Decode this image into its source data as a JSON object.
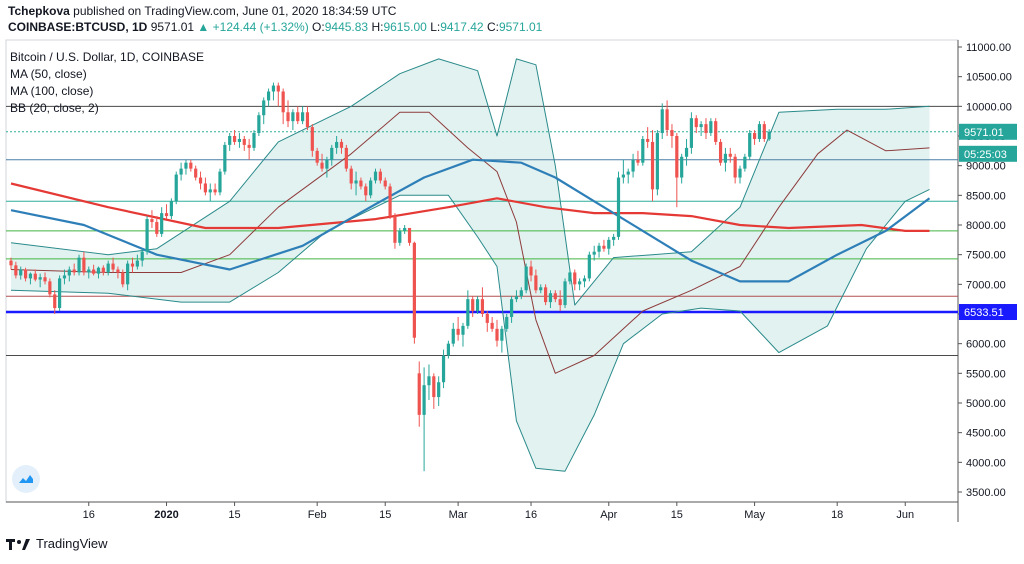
{
  "header": {
    "author": "Tchepkova",
    "published_text": " published on TradingView.com, June 01, 2020 18:34:59 UTC"
  },
  "quote": {
    "symbol": "COINBASE:BTCUSD, 1D",
    "last": "9571.01",
    "change": "▲ +124.44 (+1.32%)",
    "o_label": "O:",
    "o": "9445.83",
    "h_label": "H:",
    "h": "9615.00",
    "l_label": "L:",
    "l": "9417.42",
    "c_label": "C:",
    "c": "9571.01"
  },
  "legend": {
    "title": "Bitcoin / U.S. Dollar, 1D, COINBASE",
    "ma50": "MA (50, close)",
    "ma100": "MA (100, close)",
    "bb": "BB (20, close, 2)"
  },
  "footer": {
    "brand": "TradingView",
    "mark": "17"
  },
  "colors": {
    "up": "#26a69a",
    "down": "#ef5350",
    "ma50": "#e53935",
    "ma100": "#2e7fb8",
    "bb_band": "#2a8a8a",
    "bb_basis": "#8d3b3b",
    "bb_fill": "#e2f2f1",
    "blue_line": "#1a1aff",
    "red_line": "#b05050",
    "gray_line": "#4a4a4a",
    "green_line": "#43b543",
    "teal_line": "#2fae9a",
    "steel_line": "#4a7fa5",
    "last_price_bg": "#26a69a",
    "support_bg": "#1a1aff"
  },
  "chart_data": {
    "type": "candlestick",
    "title": "Bitcoin / U.S. Dollar, 1D, COINBASE",
    "ylim": [
      3400,
      11200
    ],
    "y_ticks": [
      3500,
      4000,
      4500,
      5000,
      5500,
      6000,
      6500,
      7000,
      7500,
      8000,
      8500,
      9000,
      9500,
      10000,
      10500,
      11000
    ],
    "y_tick_labels": [
      "3500.00",
      "4000.00",
      "4500.00",
      "5000.00",
      "5500.00",
      "6000.00",
      "6500.00",
      "7000.00",
      "7500.00",
      "8000.00",
      "8500.00",
      "9000.00",
      "9500.00",
      "10000.00",
      "10500.00",
      "11000.00"
    ],
    "x_ticks": [
      {
        "day": 16,
        "label": "16"
      },
      {
        "day": 32,
        "label": "2020"
      },
      {
        "day": 46,
        "label": "15"
      },
      {
        "day": 63,
        "label": "Feb"
      },
      {
        "day": 77,
        "label": "15"
      },
      {
        "day": 92,
        "label": "Mar"
      },
      {
        "day": 107,
        "label": "16"
      },
      {
        "day": 123,
        "label": "Apr"
      },
      {
        "day": 137,
        "label": "15"
      },
      {
        "day": 153,
        "label": "May"
      },
      {
        "day": 170,
        "label": "18"
      },
      {
        "day": 184,
        "label": "Jun"
      }
    ],
    "candles": [
      [
        7400,
        7450,
        7250,
        7320
      ],
      [
        7320,
        7380,
        7100,
        7150
      ],
      [
        7150,
        7300,
        7080,
        7250
      ],
      [
        7250,
        7280,
        7050,
        7100
      ],
      [
        7100,
        7200,
        7000,
        7180
      ],
      [
        7180,
        7250,
        7050,
        7080
      ],
      [
        7080,
        7180,
        6950,
        7120
      ],
      [
        7120,
        7200,
        7000,
        7050
      ],
      [
        7050,
        7100,
        6780,
        6830
      ],
      [
        6830,
        6900,
        6500,
        6600
      ],
      [
        6600,
        7150,
        6550,
        7100
      ],
      [
        7100,
        7250,
        7000,
        7150
      ],
      [
        7150,
        7300,
        7050,
        7250
      ],
      [
        7250,
        7350,
        7150,
        7200
      ],
      [
        7200,
        7500,
        7150,
        7450
      ],
      [
        7450,
        7550,
        7150,
        7200
      ],
      [
        7200,
        7300,
        7100,
        7250
      ],
      [
        7250,
        7330,
        7150,
        7180
      ],
      [
        7180,
        7300,
        7100,
        7280
      ],
      [
        7280,
        7320,
        7150,
        7200
      ],
      [
        7200,
        7400,
        7150,
        7350
      ],
      [
        7350,
        7450,
        7200,
        7250
      ],
      [
        7250,
        7300,
        7100,
        7200
      ],
      [
        7200,
        7250,
        6950,
        7000
      ],
      [
        7000,
        7400,
        6900,
        7350
      ],
      [
        7350,
        7450,
        7200,
        7300
      ],
      [
        7300,
        7500,
        7250,
        7400
      ],
      [
        7400,
        7600,
        7300,
        7550
      ],
      [
        7550,
        8150,
        7500,
        8100
      ],
      [
        8100,
        8250,
        7950,
        8050
      ],
      [
        8050,
        8150,
        7800,
        7850
      ],
      [
        7850,
        8300,
        7800,
        8200
      ],
      [
        8200,
        8350,
        8100,
        8150
      ],
      [
        8150,
        8450,
        8100,
        8400
      ],
      [
        8400,
        8900,
        8350,
        8850
      ],
      [
        8850,
        9050,
        8750,
        8950
      ],
      [
        8950,
        9100,
        8850,
        9050
      ],
      [
        9050,
        9100,
        8900,
        8950
      ],
      [
        8950,
        9000,
        8750,
        8800
      ],
      [
        8800,
        8900,
        8600,
        8700
      ],
      [
        8700,
        8800,
        8500,
        8550
      ],
      [
        8550,
        8700,
        8400,
        8600
      ],
      [
        8600,
        8700,
        8500,
        8550
      ],
      [
        8550,
        8950,
        8500,
        8900
      ],
      [
        8900,
        9400,
        8850,
        9350
      ],
      [
        9350,
        9550,
        9250,
        9500
      ],
      [
        9500,
        9600,
        9350,
        9400
      ],
      [
        9400,
        9550,
        9300,
        9450
      ],
      [
        9450,
        9500,
        9250,
        9350
      ],
      [
        9350,
        9450,
        9100,
        9300
      ],
      [
        9300,
        9600,
        9250,
        9550
      ],
      [
        9550,
        9900,
        9500,
        9850
      ],
      [
        9850,
        10150,
        9700,
        10100
      ],
      [
        10100,
        10300,
        10000,
        10250
      ],
      [
        10250,
        10400,
        10100,
        10350
      ],
      [
        10350,
        10400,
        10000,
        10250
      ],
      [
        10250,
        10300,
        9700,
        9900
      ],
      [
        9900,
        10100,
        9650,
        9750
      ],
      [
        9750,
        9950,
        9600,
        9900
      ],
      [
        9900,
        10000,
        9700,
        9750
      ],
      [
        9750,
        10000,
        9700,
        9900
      ],
      [
        9900,
        10000,
        9600,
        9650
      ],
      [
        9650,
        9700,
        9150,
        9250
      ],
      [
        9250,
        9300,
        9000,
        9050
      ],
      [
        9050,
        9200,
        8900,
        8950
      ],
      [
        8950,
        9150,
        8800,
        9100
      ],
      [
        9100,
        9350,
        9000,
        9300
      ],
      [
        9300,
        9500,
        9200,
        9400
      ],
      [
        9400,
        9450,
        9200,
        9300
      ],
      [
        9300,
        9350,
        8900,
        8950
      ],
      [
        8950,
        9000,
        8600,
        8700
      ],
      [
        8700,
        8900,
        8500,
        8750
      ],
      [
        8750,
        8800,
        8600,
        8650
      ],
      [
        8650,
        8700,
        8400,
        8500
      ],
      [
        8500,
        8800,
        8450,
        8750
      ],
      [
        8750,
        8950,
        8700,
        8900
      ],
      [
        8900,
        8950,
        8700,
        8750
      ],
      [
        8750,
        8800,
        8600,
        8650
      ],
      [
        8650,
        8700,
        8100,
        8150
      ],
      [
        8150,
        8200,
        7600,
        7700
      ],
      [
        7700,
        7950,
        7650,
        7900
      ],
      [
        7900,
        8000,
        7850,
        7950
      ],
      [
        7950,
        7950,
        7650,
        7700
      ],
      [
        7700,
        7720,
        6000,
        6100
      ],
      [
        5500,
        5700,
        4600,
        4800
      ],
      [
        4800,
        5600,
        3850,
        5300
      ],
      [
        5300,
        5650,
        5050,
        5450
      ],
      [
        5450,
        5500,
        4900,
        5100
      ],
      [
        5100,
        5450,
        4950,
        5350
      ],
      [
        5350,
        5900,
        5250,
        5800
      ],
      [
        5800,
        6050,
        5750,
        6000
      ],
      [
        6000,
        6350,
        5950,
        6250
      ],
      [
        6250,
        6450,
        6050,
        6150
      ],
      [
        6150,
        6350,
        5950,
        6300
      ],
      [
        6300,
        6900,
        6250,
        6750
      ],
      [
        6750,
        6800,
        6450,
        6550
      ],
      [
        6550,
        6800,
        6500,
        6750
      ],
      [
        6750,
        6950,
        6450,
        6500
      ],
      [
        6500,
        6550,
        6200,
        6350
      ],
      [
        6350,
        6450,
        6200,
        6250
      ],
      [
        6250,
        6400,
        5950,
        6050
      ],
      [
        6050,
        6300,
        5850,
        6250
      ],
      [
        6250,
        6500,
        6200,
        6450
      ],
      [
        6450,
        6800,
        6350,
        6750
      ],
      [
        6750,
        6900,
        6700,
        6800
      ],
      [
        6800,
        6950,
        6750,
        6900
      ],
      [
        6900,
        7350,
        6850,
        7300
      ],
      [
        7300,
        7400,
        7050,
        7150
      ],
      [
        7150,
        7250,
        6850,
        6900
      ],
      [
        6900,
        7000,
        6850,
        6950
      ],
      [
        6950,
        7000,
        6650,
        6700
      ],
      [
        6700,
        6900,
        6600,
        6850
      ],
      [
        6850,
        6900,
        6700,
        6750
      ],
      [
        6750,
        6900,
        6550,
        6650
      ],
      [
        6650,
        7100,
        6600,
        7050
      ],
      [
        7050,
        7250,
        7000,
        7200
      ],
      [
        7200,
        7250,
        6900,
        7000
      ],
      [
        7000,
        7100,
        6900,
        7050
      ],
      [
        7050,
        7150,
        6950,
        7100
      ],
      [
        7100,
        7550,
        7050,
        7500
      ],
      [
        7500,
        7650,
        7400,
        7550
      ],
      [
        7550,
        7700,
        7450,
        7650
      ],
      [
        7650,
        7750,
        7550,
        7600
      ],
      [
        7600,
        7800,
        7500,
        7750
      ],
      [
        7750,
        7850,
        7650,
        7800
      ],
      [
        7800,
        8900,
        7750,
        8800
      ],
      [
        8800,
        9100,
        8700,
        8850
      ],
      [
        8850,
        8950,
        8700,
        8900
      ],
      [
        8900,
        9200,
        8800,
        9100
      ],
      [
        9100,
        9250,
        9000,
        9050
      ],
      [
        9050,
        9500,
        9000,
        9450
      ],
      [
        9450,
        9650,
        9300,
        9400
      ],
      [
        9400,
        9600,
        8400,
        8600
      ],
      [
        8600,
        9600,
        8500,
        9550
      ],
      [
        9550,
        10050,
        9450,
        9950
      ],
      [
        9950,
        10100,
        9500,
        9600
      ],
      [
        9600,
        9700,
        9300,
        9500
      ],
      [
        9500,
        9550,
        8300,
        8800
      ],
      [
        8800,
        9200,
        8700,
        9150
      ],
      [
        9150,
        9450,
        9000,
        9300
      ],
      [
        9300,
        9900,
        9200,
        9800
      ],
      [
        9800,
        9850,
        9550,
        9650
      ],
      [
        9650,
        9750,
        9500,
        9700
      ],
      [
        9700,
        9800,
        9450,
        9550
      ],
      [
        9550,
        9800,
        9500,
        9750
      ],
      [
        9750,
        9800,
        9350,
        9400
      ],
      [
        9400,
        9450,
        9000,
        9050
      ],
      [
        9050,
        9300,
        8900,
        9200
      ],
      [
        9200,
        9300,
        9050,
        9150
      ],
      [
        9150,
        9200,
        8700,
        8800
      ],
      [
        8800,
        9000,
        8700,
        8950
      ],
      [
        8950,
        9200,
        8900,
        9150
      ],
      [
        9150,
        9600,
        9100,
        9550
      ],
      [
        9550,
        9600,
        9350,
        9450
      ],
      [
        9450,
        9750,
        9400,
        9700
      ],
      [
        9700,
        9750,
        9400,
        9450
      ],
      [
        9445.83,
        9615,
        9417.42,
        9571.01
      ]
    ],
    "ma50": [
      [
        0,
        8700
      ],
      [
        20,
        8300
      ],
      [
        40,
        7950
      ],
      [
        55,
        7950
      ],
      [
        75,
        8100
      ],
      [
        90,
        8300
      ],
      [
        100,
        8450
      ],
      [
        110,
        8300
      ],
      [
        120,
        8200
      ],
      [
        130,
        8200
      ],
      [
        140,
        8150
      ],
      [
        150,
        8000
      ],
      [
        160,
        7950
      ],
      [
        175,
        8000
      ],
      [
        184,
        7900
      ],
      [
        189,
        7900
      ]
    ],
    "ma100": [
      [
        0,
        8250
      ],
      [
        15,
        8000
      ],
      [
        30,
        7500
      ],
      [
        45,
        7250
      ],
      [
        60,
        7650
      ],
      [
        75,
        8350
      ],
      [
        85,
        8800
      ],
      [
        95,
        9100
      ],
      [
        105,
        9050
      ],
      [
        112,
        8800
      ],
      [
        120,
        8400
      ],
      [
        130,
        7900
      ],
      [
        140,
        7400
      ],
      [
        150,
        7050
      ],
      [
        160,
        7050
      ],
      [
        170,
        7500
      ],
      [
        180,
        7900
      ],
      [
        189,
        8450
      ]
    ],
    "bb_upper": [
      [
        0,
        7700
      ],
      [
        20,
        7500
      ],
      [
        30,
        7600
      ],
      [
        45,
        8400
      ],
      [
        55,
        9400
      ],
      [
        70,
        10000
      ],
      [
        80,
        10550
      ],
      [
        88,
        10800
      ],
      [
        96,
        10600
      ],
      [
        100,
        9500
      ],
      [
        104,
        10800
      ],
      [
        108,
        10700
      ],
      [
        112,
        9000
      ],
      [
        116,
        6650
      ],
      [
        124,
        7450
      ],
      [
        132,
        7500
      ],
      [
        140,
        7550
      ],
      [
        150,
        8300
      ],
      [
        158,
        9900
      ],
      [
        170,
        9950
      ],
      [
        180,
        9950
      ],
      [
        189,
        10000
      ]
    ],
    "bb_lower": [
      [
        0,
        6900
      ],
      [
        20,
        6850
      ],
      [
        35,
        6700
      ],
      [
        45,
        6700
      ],
      [
        55,
        7200
      ],
      [
        65,
        7900
      ],
      [
        80,
        8500
      ],
      [
        90,
        8500
      ],
      [
        96,
        7800
      ],
      [
        100,
        7300
      ],
      [
        104,
        4700
      ],
      [
        108,
        3900
      ],
      [
        114,
        3850
      ],
      [
        120,
        4800
      ],
      [
        126,
        6000
      ],
      [
        134,
        6500
      ],
      [
        142,
        6600
      ],
      [
        150,
        6550
      ],
      [
        158,
        5850
      ],
      [
        168,
        6300
      ],
      [
        176,
        7600
      ],
      [
        184,
        8400
      ],
      [
        189,
        8600
      ]
    ],
    "bb_basis": [
      [
        0,
        7250
      ],
      [
        20,
        7200
      ],
      [
        35,
        7200
      ],
      [
        45,
        7500
      ],
      [
        55,
        8300
      ],
      [
        70,
        9200
      ],
      [
        80,
        9900
      ],
      [
        86,
        9900
      ],
      [
        94,
        9300
      ],
      [
        100,
        8900
      ],
      [
        104,
        8050
      ],
      [
        108,
        6400
      ],
      [
        112,
        5500
      ],
      [
        120,
        5800
      ],
      [
        130,
        6550
      ],
      [
        140,
        6900
      ],
      [
        150,
        7300
      ],
      [
        158,
        8300
      ],
      [
        166,
        9200
      ],
      [
        172,
        9600
      ],
      [
        180,
        9250
      ],
      [
        189,
        9300
      ]
    ],
    "hlines": [
      {
        "y": 10000,
        "color": "gray"
      },
      {
        "y": 9571.01,
        "color": "teal",
        "dashed": true
      },
      {
        "y": 9100,
        "color": "steel"
      },
      {
        "y": 8400,
        "color": "teal"
      },
      {
        "y": 7900,
        "color": "green"
      },
      {
        "y": 7430,
        "color": "green"
      },
      {
        "y": 6800,
        "color": "red"
      },
      {
        "y": 6533.51,
        "color": "blue",
        "bold": true
      },
      {
        "y": 5800,
        "color": "gray"
      }
    ],
    "price_labels": [
      {
        "y": 9571.01,
        "text": "9571.01",
        "bg": "teal"
      },
      {
        "y": 9200,
        "text": "05:25:03",
        "bg": "teal"
      },
      {
        "y": 6533.51,
        "text": "6533.51",
        "bg": "blue"
      }
    ]
  }
}
